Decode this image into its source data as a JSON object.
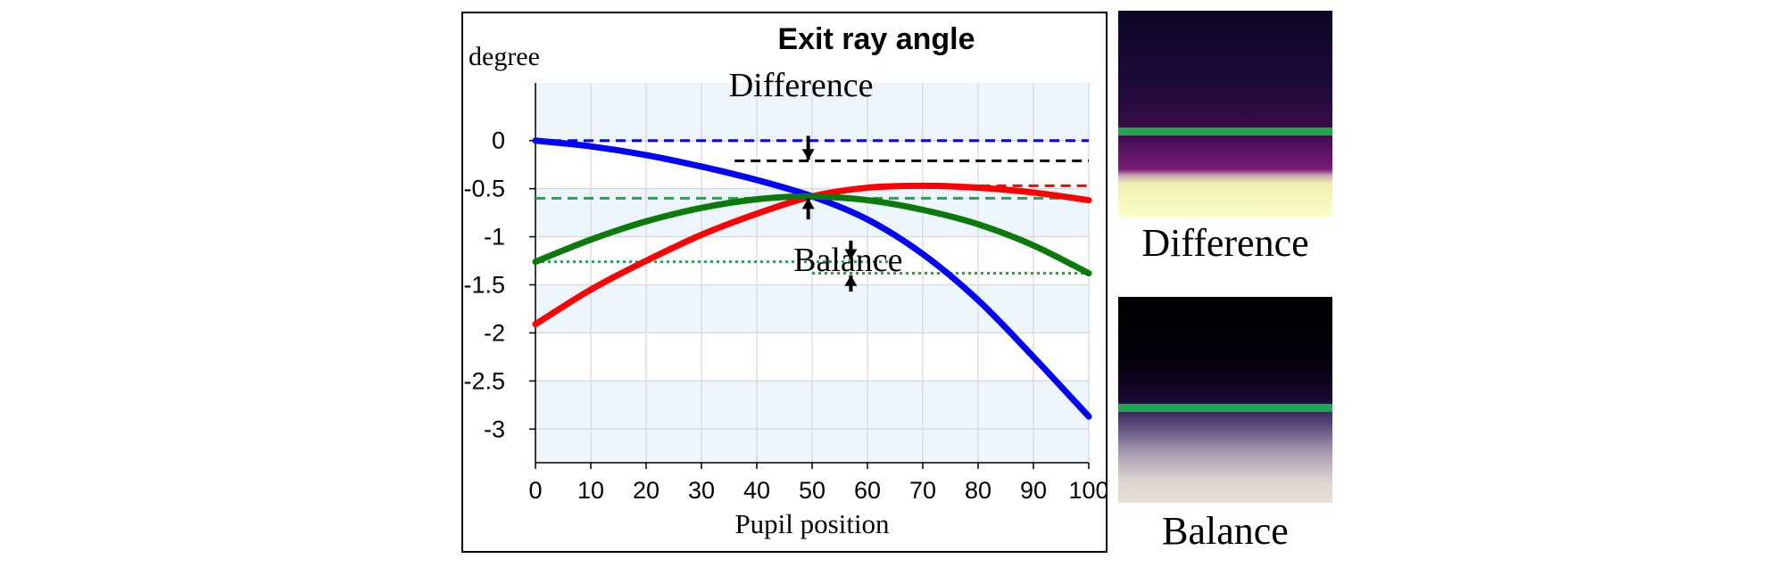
{
  "chart_data": {
    "type": "line",
    "title": "Exit ray angle",
    "ylabel": "degree",
    "xlabel": "Pupil position",
    "x_ticks": [
      0,
      10,
      20,
      30,
      40,
      50,
      60,
      70,
      80,
      90,
      100
    ],
    "y_ticks": [
      0,
      -0.5,
      -1,
      -1.5,
      -2,
      -2.5,
      -3
    ],
    "y_tick_labels": [
      "0",
      "-0.5",
      "-1",
      "-1.5",
      "-2",
      "-2.5",
      "-3"
    ],
    "xlim": [
      0,
      100
    ],
    "ylim": [
      -3.35,
      0.6
    ],
    "grid": true,
    "series": [
      {
        "color": "#0000ff",
        "x": [
          0,
          10,
          20,
          30,
          40,
          50,
          60,
          70,
          80,
          90,
          100
        ],
        "y": [
          0,
          -0.06,
          -0.15,
          -0.27,
          -0.41,
          -0.58,
          -0.82,
          -1.18,
          -1.66,
          -2.25,
          -2.87
        ]
      },
      {
        "color": "#ff0000",
        "x": [
          0,
          10,
          20,
          30,
          40,
          50,
          60,
          70,
          80,
          90,
          100
        ],
        "y": [
          -1.91,
          -1.55,
          -1.25,
          -0.98,
          -0.76,
          -0.58,
          -0.49,
          -0.47,
          -0.49,
          -0.54,
          -0.62
        ]
      },
      {
        "color": "#0a7a0a",
        "x": [
          0,
          10,
          20,
          30,
          40,
          50,
          60,
          70,
          80,
          90,
          100
        ],
        "y": [
          -1.26,
          -1.03,
          -0.84,
          -0.7,
          -0.61,
          -0.58,
          -0.62,
          -0.72,
          -0.87,
          -1.09,
          -1.38
        ]
      }
    ],
    "reference_lines": [
      {
        "color": "#0000ff",
        "style": "dashed",
        "y": 0.0,
        "x0": 0,
        "x1": 100
      },
      {
        "color": "#000000",
        "style": "dashed",
        "y": -0.21,
        "x0": 36,
        "x1": 100
      },
      {
        "color": "#ff0000",
        "style": "dashed",
        "y": -0.47,
        "x0": 63,
        "x1": 100
      },
      {
        "color": "#1fa64f",
        "style": "dashed",
        "y": -0.6,
        "x0": 0,
        "x1": 100
      },
      {
        "color": "#1fa64f",
        "style": "dotted",
        "y": -1.26,
        "x0": 0,
        "x1": 64
      },
      {
        "color": "#1fa64f",
        "style": "dotted",
        "y": -1.38,
        "x0": 50,
        "x1": 100
      }
    ],
    "annotations": [
      {
        "text": "Difference"
      },
      {
        "text": "Balance"
      }
    ]
  },
  "panels": [
    {
      "label": "Difference"
    },
    {
      "label": "Balance"
    }
  ]
}
